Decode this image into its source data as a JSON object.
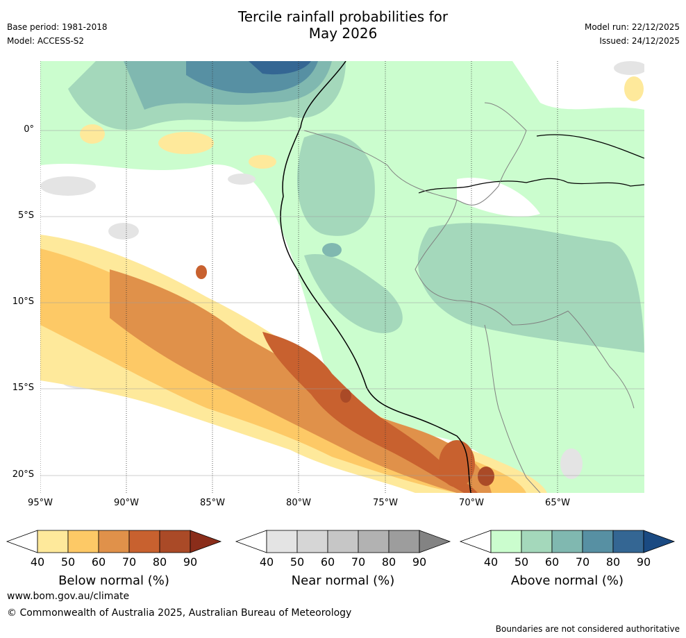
{
  "title_line1": "Tercile rainfall probabilities for",
  "title_line2": "May 2026",
  "base_period": "Base period: 1981-2018",
  "model": "Model: ACCESS-S2",
  "model_run": "Model run: 22/12/2025",
  "issued": "Issued: 24/12/2025",
  "axes": {
    "x_labels": [
      "95°W",
      "90°W",
      "85°W",
      "80°W",
      "75°W",
      "70°W",
      "65°W"
    ],
    "y_labels": [
      "0°",
      "5°S",
      "10°S",
      "15°S",
      "20°S"
    ]
  },
  "colorbars": [
    {
      "label": "Below normal (%)",
      "ticks": [
        "40",
        "50",
        "60",
        "70",
        "80",
        "90"
      ],
      "colors": [
        "#ffffff",
        "#fee99b",
        "#fdc966",
        "#e0914a",
        "#c8612f",
        "#aa4a27",
        "#8a2d1a"
      ]
    },
    {
      "label": "Near normal (%)",
      "ticks": [
        "40",
        "50",
        "60",
        "70",
        "80",
        "90"
      ],
      "colors": [
        "#ffffff",
        "#e4e4e4",
        "#d6d6d6",
        "#c6c6c6",
        "#b2b2b2",
        "#9d9d9d",
        "#838383"
      ]
    },
    {
      "label": "Above normal (%)",
      "ticks": [
        "40",
        "50",
        "60",
        "70",
        "80",
        "90"
      ],
      "colors": [
        "#ffffff",
        "#cbfdce",
        "#a4d8bb",
        "#80b8b0",
        "#5790a3",
        "#346693",
        "#1a4a82"
      ]
    }
  ],
  "footer": {
    "url": "www.bom.gov.au/climate",
    "copyright": "© Commonwealth of Australia 2025, Australian Bureau of Meteorology",
    "note": "Boundaries are not considered authoritative"
  }
}
